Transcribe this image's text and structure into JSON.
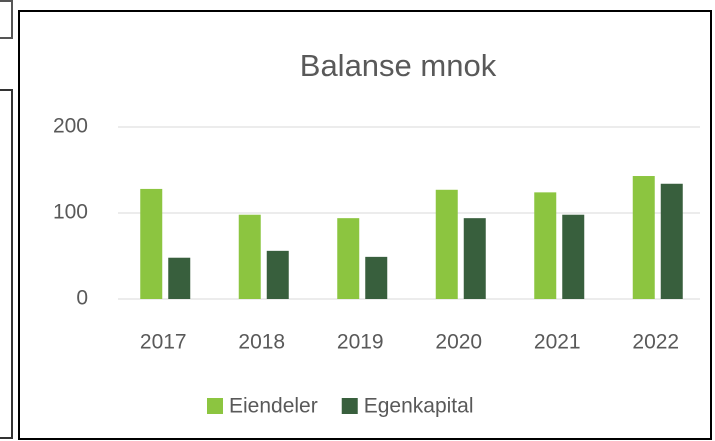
{
  "chart_data": {
    "type": "bar",
    "title": "Balanse mnok",
    "categories": [
      "2017",
      "2018",
      "2019",
      "2020",
      "2021",
      "2022"
    ],
    "series": [
      {
        "name": "Eiendeler",
        "color": "#8cc540",
        "values": [
          128,
          98,
          94,
          127,
          124,
          143
        ]
      },
      {
        "name": "Egenkapital",
        "color": "#385f3d",
        "values": [
          48,
          56,
          49,
          94,
          98,
          134
        ]
      }
    ],
    "ylim": [
      0,
      200
    ],
    "yticks": [
      0,
      100,
      200
    ],
    "grid": true,
    "legend": "bottom"
  }
}
